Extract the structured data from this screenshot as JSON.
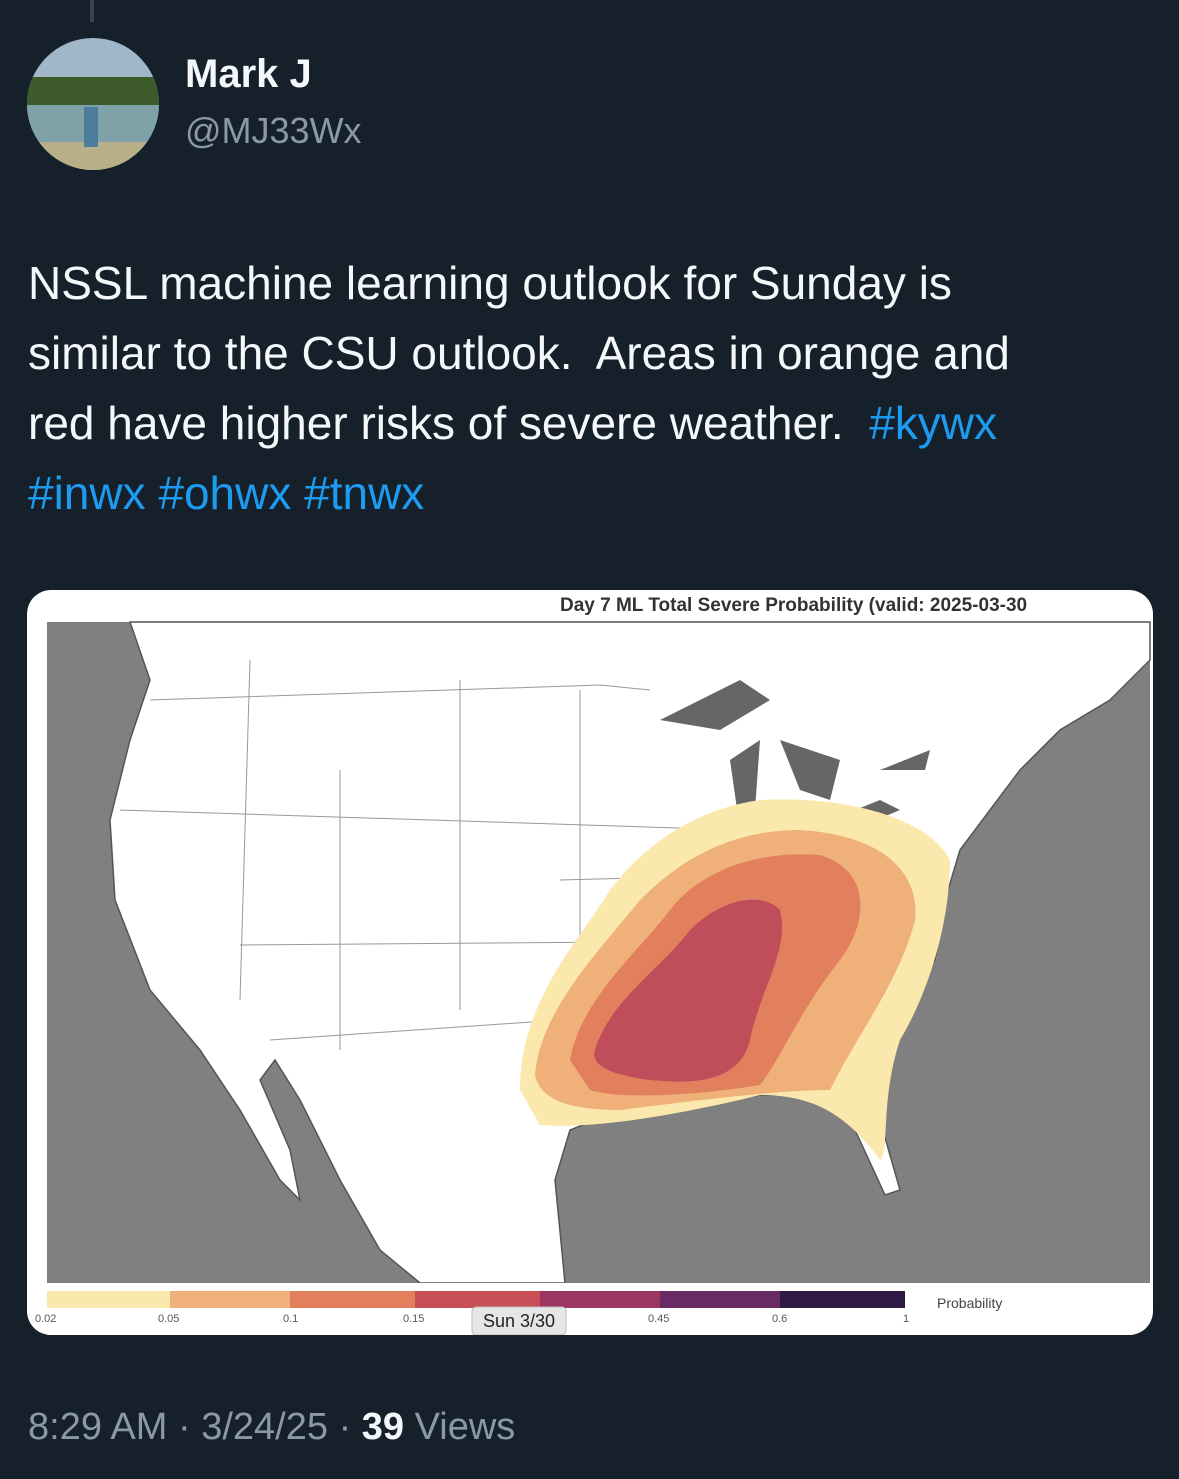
{
  "author": {
    "name": "Mark J",
    "handle": "@MJ33Wx"
  },
  "tweet": {
    "lines": [
      "NSSL machine learning outlook for Sunday is",
      "similar to the CSU outlook.  Areas in orange and",
      "red have higher risks of severe weather."
    ],
    "hashtags": [
      "#kywx",
      "#inwx",
      "#ohwx",
      "#tnwx"
    ]
  },
  "image": {
    "title": "Day 7 ML Total Severe Probability (valid: 2025-03-30",
    "colorbar_ticks": [
      "0.02",
      "0.05",
      "0.1",
      "0.15",
      "0.45",
      "0.6",
      "1"
    ],
    "colorbar_label": "Probability",
    "day_badge": "Sun 3/30"
  },
  "footer": {
    "time": "8:29 AM",
    "separator": "·",
    "date": "3/24/25",
    "views_count": "39",
    "views_label": "Views"
  }
}
